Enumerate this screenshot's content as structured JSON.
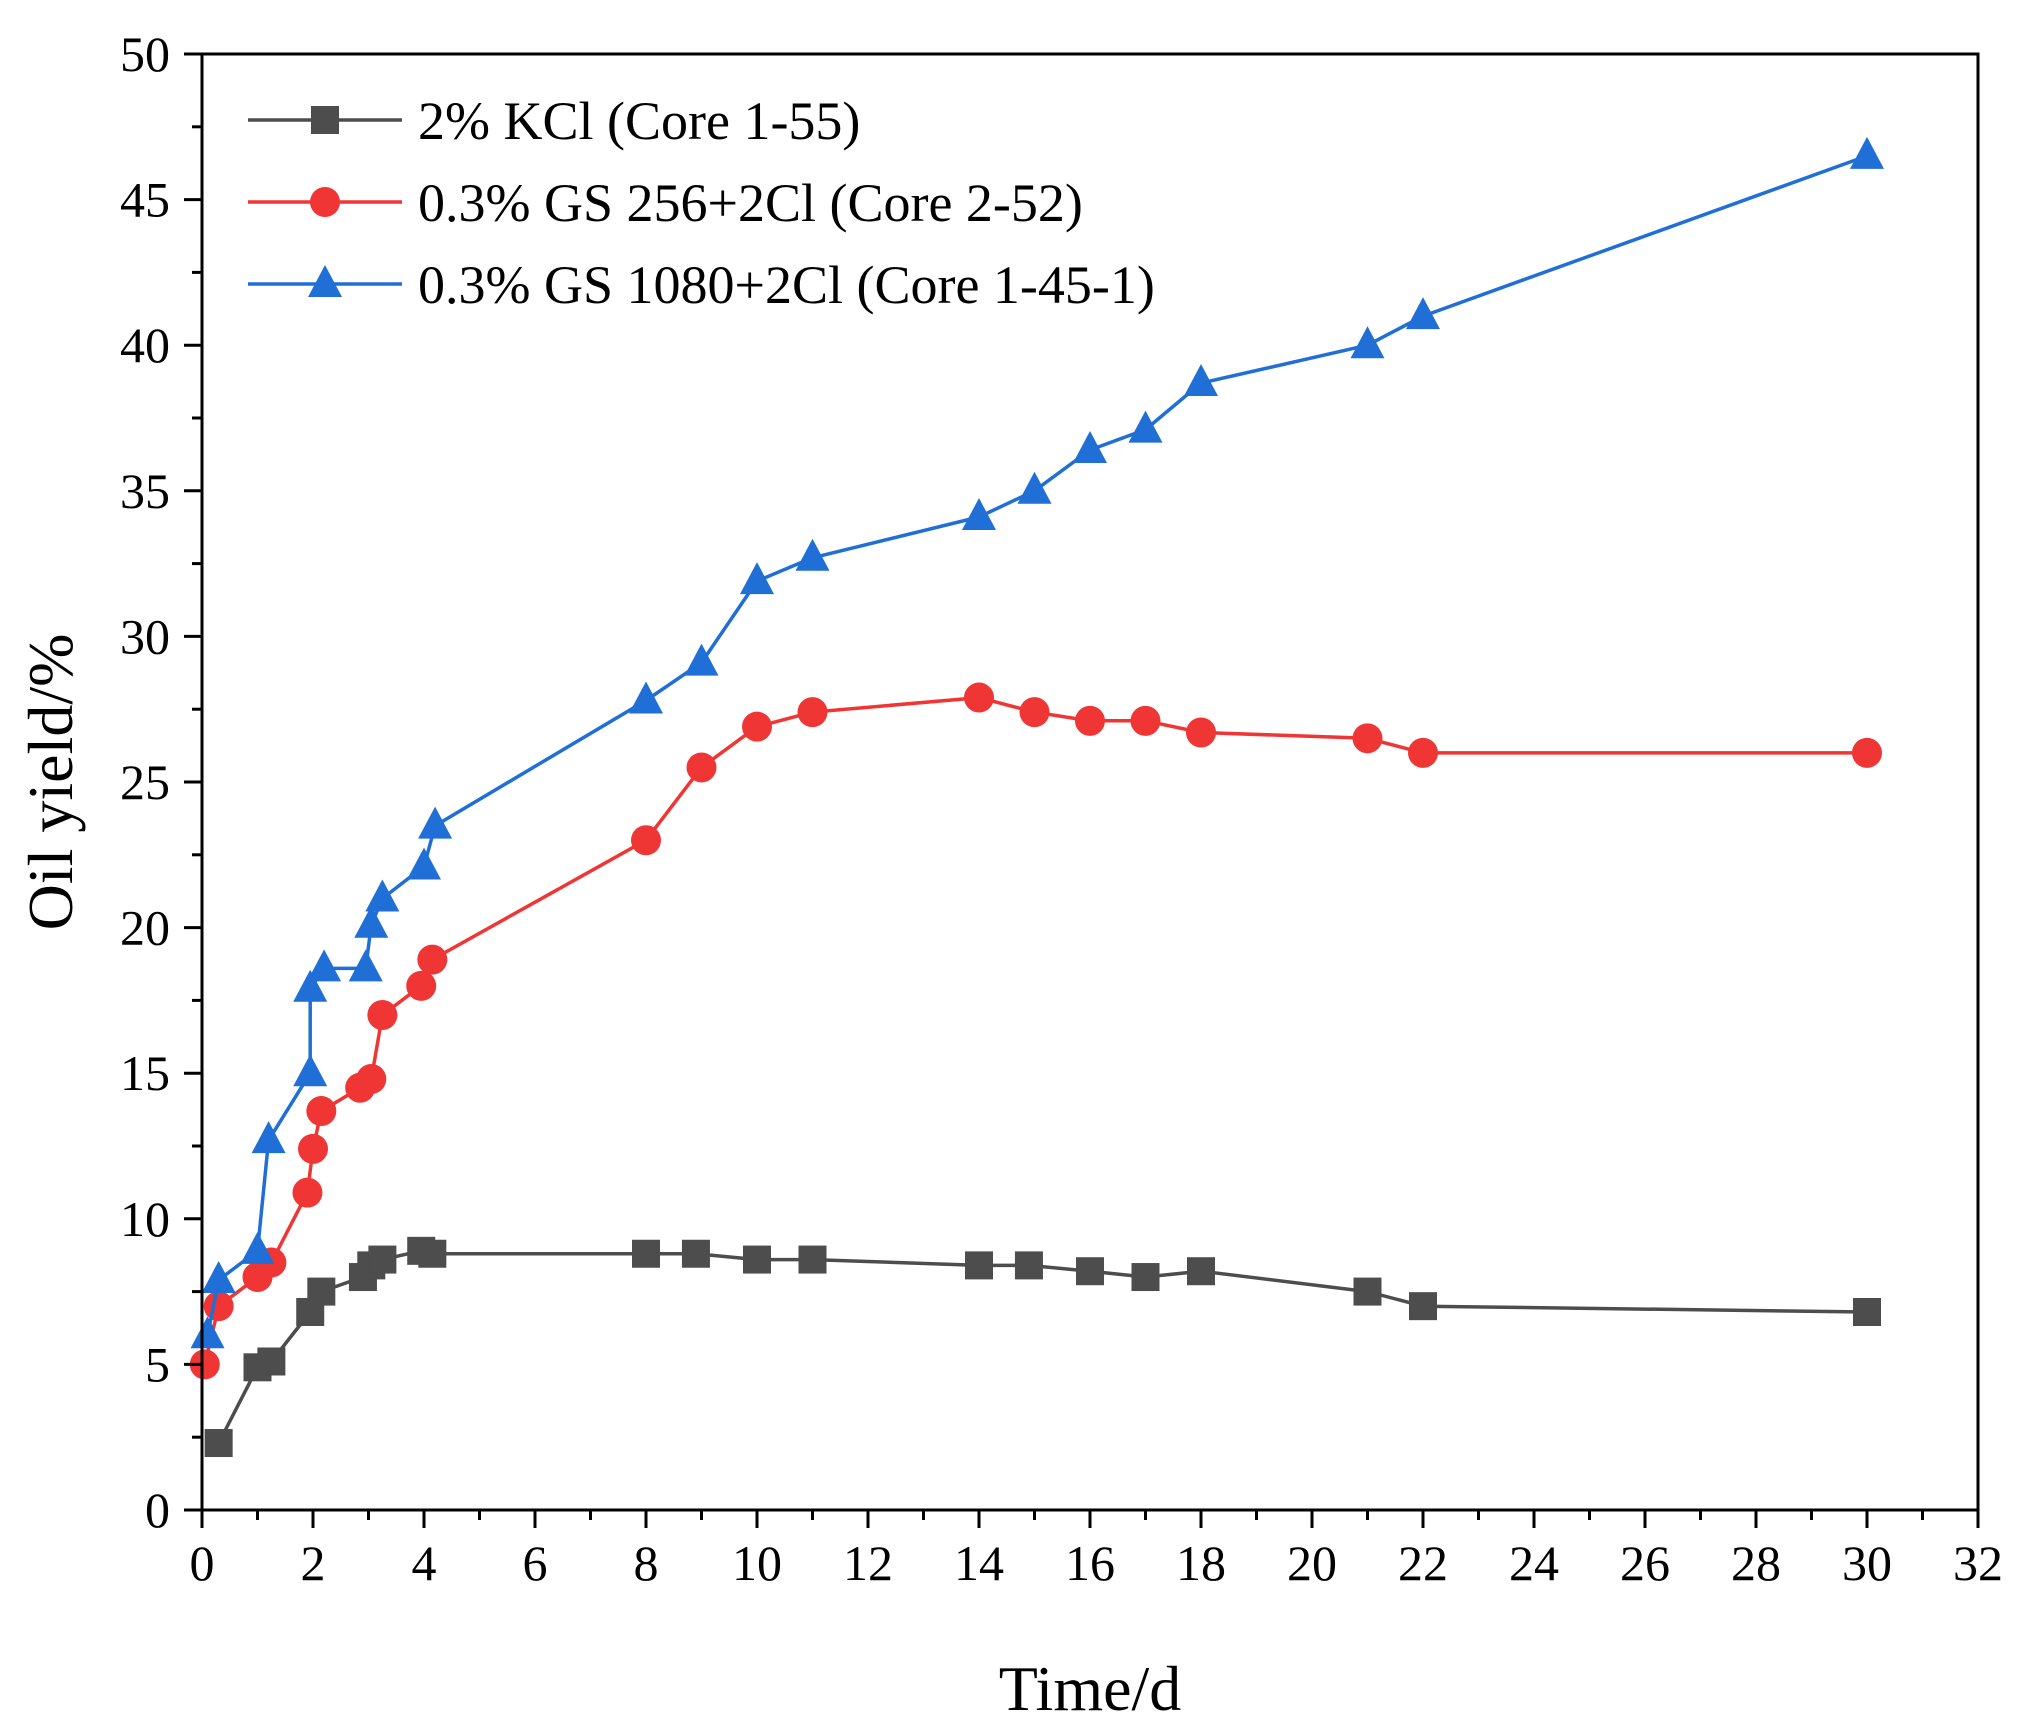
{
  "chart_data": {
    "type": "line",
    "title": "",
    "xlabel": "Time/d",
    "ylabel": "Oil yield/%",
    "xlim": [
      0,
      32
    ],
    "ylim": [
      0,
      50
    ],
    "xticks": [
      0,
      2,
      4,
      6,
      8,
      10,
      12,
      14,
      16,
      18,
      20,
      22,
      24,
      26,
      28,
      30,
      32
    ],
    "yticks": [
      0,
      5,
      10,
      15,
      20,
      25,
      30,
      35,
      40,
      45,
      50
    ],
    "grid": false,
    "legend_position": "top-left",
    "series": [
      {
        "name": "2% KCl (Core 1-55)",
        "color": "#4d4d4d",
        "marker": "square",
        "x": [
          0.3,
          1.0,
          1.25,
          1.95,
          2.15,
          2.9,
          3.05,
          3.25,
          3.95,
          4.15,
          8.0,
          8.9,
          10.0,
          11.0,
          14.0,
          14.9,
          16.0,
          17.0,
          18.0,
          21.0,
          22.0,
          30.0
        ],
        "y": [
          2.3,
          4.9,
          5.1,
          6.8,
          7.5,
          8.0,
          8.4,
          8.6,
          8.9,
          8.8,
          8.8,
          8.8,
          8.6,
          8.6,
          8.4,
          8.4,
          8.2,
          8.0,
          8.2,
          7.5,
          7.0,
          6.8
        ]
      },
      {
        "name": "0.3% GS 256+2Cl (Core 2-52)",
        "color": "#f03535",
        "marker": "circle",
        "x": [
          0.05,
          0.3,
          1.0,
          1.25,
          1.9,
          2.0,
          2.15,
          2.85,
          3.05,
          3.25,
          3.95,
          4.15,
          8.0,
          9.0,
          10.0,
          11.0,
          14.0,
          15.0,
          16.0,
          17.0,
          18.0,
          21.0,
          22.0,
          30.0
        ],
        "y": [
          5.0,
          7.0,
          8.0,
          8.5,
          10.9,
          12.4,
          13.7,
          14.5,
          14.8,
          17.0,
          18.0,
          18.9,
          23.0,
          25.5,
          26.9,
          27.4,
          27.9,
          27.4,
          27.1,
          27.1,
          26.7,
          26.5,
          26.0,
          26.0
        ]
      },
      {
        "name": "0.3% GS 1080+2Cl (Core 1-45-1)",
        "color": "#1f6fd6",
        "marker": "triangle",
        "x": [
          0.1,
          0.3,
          1.0,
          1.2,
          1.95,
          1.95,
          2.2,
          2.95,
          3.05,
          3.25,
          4.0,
          4.2,
          8.0,
          9.0,
          10.0,
          11.0,
          14.0,
          15.0,
          16.0,
          17.0,
          18.0,
          21.0,
          22.0,
          30.0
        ],
        "y": [
          6.0,
          7.9,
          8.9,
          12.7,
          15.0,
          17.9,
          18.6,
          18.6,
          20.1,
          21.0,
          22.1,
          23.5,
          27.8,
          29.1,
          31.9,
          32.7,
          34.1,
          35.0,
          36.4,
          37.1,
          38.7,
          40.0,
          41.0,
          46.5
        ]
      }
    ]
  }
}
